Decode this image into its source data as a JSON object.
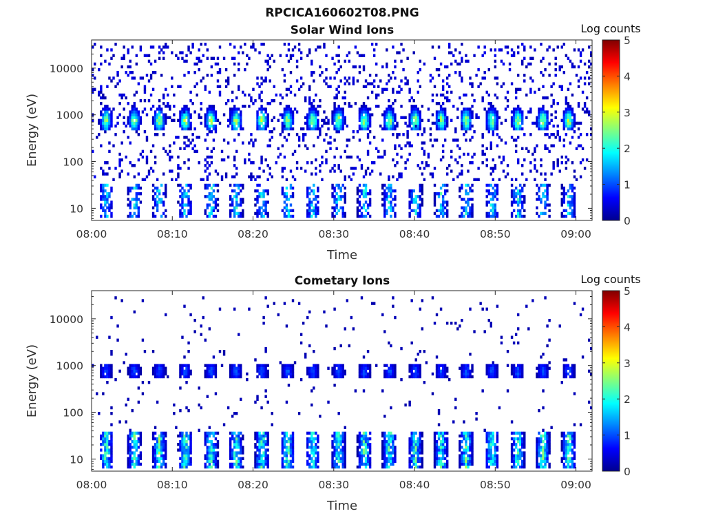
{
  "figure_title": "RPCICA160602T08.PNG",
  "colormap": [
    "#00008f",
    "#0000ff",
    "#0080ff",
    "#00ffff",
    "#80ff80",
    "#ffff00",
    "#ff8000",
    "#ff0000",
    "#800000"
  ],
  "chart_data": [
    {
      "type": "heatmap",
      "title": "Solar Wind Ions",
      "xlabel": "Time",
      "ylabel": "Energy (eV)",
      "yscale": "log",
      "ylim": [
        5.5,
        40000
      ],
      "xlim_minutes": [
        0,
        62
      ],
      "x_ticks": [
        {
          "value": 0,
          "label": "08:00"
        },
        {
          "value": 10,
          "label": "08:10"
        },
        {
          "value": 20,
          "label": "08:20"
        },
        {
          "value": 30,
          "label": "08:30"
        },
        {
          "value": 40,
          "label": "08:40"
        },
        {
          "value": 50,
          "label": "08:50"
        },
        {
          "value": 60,
          "label": "09:00"
        }
      ],
      "y_ticks": [
        {
          "value": 10,
          "label": "10"
        },
        {
          "value": 100,
          "label": "100"
        },
        {
          "value": 1000,
          "label": "1000"
        },
        {
          "value": 10000,
          "label": "10000"
        }
      ],
      "colorbar": {
        "label": "Log counts",
        "range": [
          0,
          5
        ],
        "ticks": [
          "0",
          "1",
          "2",
          "3",
          "4",
          "5"
        ]
      },
      "sweep_times_minutes": [
        1.8,
        5.3,
        8.4,
        11.6,
        14.8,
        17.9,
        21.1,
        24.3,
        27.4,
        30.6,
        33.8,
        36.9,
        40.1,
        43.3,
        46.4,
        49.6,
        52.8,
        55.9,
        59.1
      ],
      "features": [
        {
          "name": "solar wind peak",
          "energy_center_eV": 750,
          "energy_range_eV": [
            450,
            2000
          ],
          "peak_log_counts": 2.6
        },
        {
          "name": "low-energy band",
          "energy_range_eV": [
            6,
            35
          ],
          "peak_log_counts": 2.0
        },
        {
          "name": "background noise",
          "energy_range_eV": [
            40,
            35000
          ],
          "peak_log_counts": 0.4
        }
      ]
    },
    {
      "type": "heatmap",
      "title": "Cometary Ions",
      "xlabel": "Time",
      "ylabel": "Energy (eV)",
      "yscale": "log",
      "ylim": [
        5.5,
        40000
      ],
      "xlim_minutes": [
        0,
        62
      ],
      "x_ticks": [
        {
          "value": 0,
          "label": "08:00"
        },
        {
          "value": 10,
          "label": "08:10"
        },
        {
          "value": 20,
          "label": "08:20"
        },
        {
          "value": 30,
          "label": "08:30"
        },
        {
          "value": 40,
          "label": "08:40"
        },
        {
          "value": 50,
          "label": "08:50"
        },
        {
          "value": 60,
          "label": "09:00"
        }
      ],
      "y_ticks": [
        {
          "value": 10,
          "label": "10"
        },
        {
          "value": 100,
          "label": "100"
        },
        {
          "value": 1000,
          "label": "1000"
        },
        {
          "value": 10000,
          "label": "10000"
        }
      ],
      "colorbar": {
        "label": "Log counts",
        "range": [
          0,
          5
        ],
        "ticks": [
          "0",
          "1",
          "2",
          "3",
          "4",
          "5"
        ]
      },
      "sweep_times_minutes": [
        1.8,
        5.3,
        8.4,
        11.6,
        14.8,
        17.9,
        21.1,
        24.3,
        27.4,
        30.6,
        33.8,
        36.9,
        40.1,
        43.3,
        46.4,
        49.6,
        52.8,
        55.9,
        59.1
      ],
      "features": [
        {
          "name": "sweep peak",
          "energy_center_eV": 750,
          "energy_range_eV": [
            550,
            1100
          ],
          "peak_log_counts": 1.0
        },
        {
          "name": "cometary ion band",
          "energy_range_eV": [
            6,
            40
          ],
          "peak_log_counts": 2.4
        },
        {
          "name": "background noise",
          "energy_range_eV": [
            40,
            30000
          ],
          "peak_log_counts": 0.1
        }
      ]
    }
  ]
}
